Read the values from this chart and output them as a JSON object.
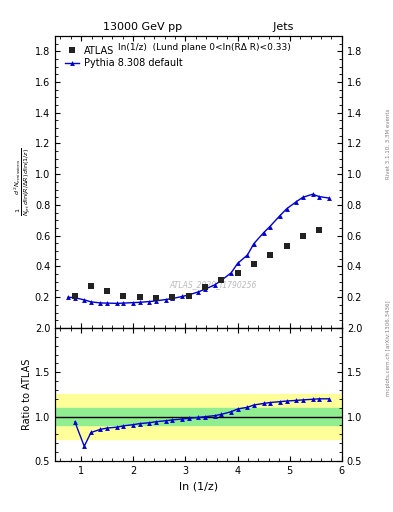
{
  "title_left": "13000 GeV pp",
  "title_right": "Jets",
  "subtitle": "ln(1/z)  (Lund plane 0<ln(RΔ R)<0.33)",
  "ylabel_main": "$\\frac{1}{N_{jet}}\\frac{d^2 N_{emissions}}{d\\ln(R/\\Delta R)\\,d\\ln(1/z)}$",
  "ylabel_ratio": "Ratio to ATLAS",
  "xlabel": "ln (1/z)",
  "watermark": "ATLAS_2020_I1790256",
  "rivet_text": "Rivet 3.1.10, 3.3M events",
  "arxiv_text": "mcplots.cern.ch [arXiv:1306.3436]",
  "atlas_x": [
    0.88,
    1.19,
    1.5,
    1.81,
    2.12,
    2.44,
    2.75,
    3.06,
    3.37,
    3.69,
    4.0,
    4.31,
    4.62,
    4.94,
    5.25,
    5.56
  ],
  "atlas_y": [
    0.205,
    0.275,
    0.24,
    0.21,
    0.2,
    0.198,
    0.2,
    0.21,
    0.265,
    0.315,
    0.36,
    0.415,
    0.475,
    0.535,
    0.6,
    0.64
  ],
  "pythia_x": [
    0.75,
    0.88,
    1.06,
    1.19,
    1.37,
    1.5,
    1.69,
    1.81,
    2.0,
    2.12,
    2.31,
    2.44,
    2.62,
    2.75,
    2.94,
    3.06,
    3.25,
    3.37,
    3.56,
    3.69,
    3.88,
    4.0,
    4.19,
    4.31,
    4.5,
    4.62,
    4.81,
    4.94,
    5.12,
    5.25,
    5.44,
    5.56,
    5.75
  ],
  "pythia_y": [
    0.2,
    0.197,
    0.183,
    0.17,
    0.163,
    0.162,
    0.16,
    0.162,
    0.165,
    0.167,
    0.172,
    0.177,
    0.185,
    0.192,
    0.205,
    0.215,
    0.235,
    0.252,
    0.28,
    0.31,
    0.36,
    0.42,
    0.475,
    0.548,
    0.62,
    0.66,
    0.73,
    0.775,
    0.82,
    0.85,
    0.87,
    0.855,
    0.845
  ],
  "ratio_x": [
    0.88,
    1.06,
    1.19,
    1.37,
    1.5,
    1.69,
    1.81,
    2.0,
    2.12,
    2.31,
    2.44,
    2.62,
    2.75,
    2.94,
    3.06,
    3.25,
    3.37,
    3.56,
    3.69,
    3.88,
    4.0,
    4.19,
    4.31,
    4.5,
    4.62,
    4.81,
    4.94,
    5.12,
    5.25,
    5.44,
    5.56,
    5.75
  ],
  "ratio_y": [
    0.94,
    0.665,
    0.82,
    0.855,
    0.87,
    0.88,
    0.895,
    0.908,
    0.92,
    0.93,
    0.942,
    0.952,
    0.962,
    0.972,
    0.98,
    0.99,
    0.998,
    1.01,
    1.025,
    1.055,
    1.085,
    1.105,
    1.13,
    1.148,
    1.158,
    1.168,
    1.175,
    1.182,
    1.188,
    1.195,
    1.2,
    1.2
  ],
  "green_band_lo": 0.9,
  "green_band_hi": 1.1,
  "yellow_band_lo": 0.75,
  "yellow_band_hi": 1.25,
  "xlim": [
    0.5,
    6.0
  ],
  "ylim_main": [
    0.0,
    1.9
  ],
  "ylim_ratio": [
    0.5,
    2.0
  ],
  "main_yticks": [
    0.2,
    0.4,
    0.6,
    0.8,
    1.0,
    1.2,
    1.4,
    1.6,
    1.8
  ],
  "ratio_yticks": [
    0.5,
    1.0,
    1.5,
    2.0
  ],
  "xticks": [
    1,
    2,
    3,
    4,
    5,
    6
  ],
  "atlas_color": "#222222",
  "pythia_color": "#0000cc",
  "green_color": "#90ee90",
  "yellow_color": "#ffff99",
  "ratio_line_color": "#000000"
}
